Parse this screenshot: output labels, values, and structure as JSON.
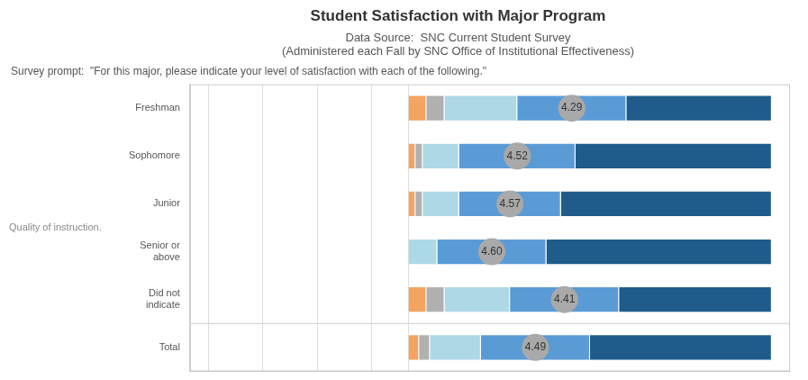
{
  "chart_data": {
    "type": "bar",
    "orientation": "horizontal",
    "stacked": true,
    "title": "Student Satisfaction with Major Program",
    "subtitle": [
      "Data Source:  SNC Current Student Survey",
      "(Administered each Fall by SNC Office of Institutional Effectiveness)"
    ],
    "annotations": [
      "Survey prompt:  \"For this major, please indicate your level of satisfaction with each of the following.\"",
      "Quality of instruction."
    ],
    "categories": [
      "Freshman",
      "Sophomore",
      "Junior",
      "Senior or\nabove",
      "Did not\nindicate",
      "Total"
    ],
    "series": [
      {
        "color": "#F4A460",
        "values": [
          0.05,
          0.02,
          0.02,
          0.0,
          0.05,
          0.03
        ]
      },
      {
        "color": "#B0B0B0",
        "values": [
          0.05,
          0.02,
          0.02,
          0.0,
          0.05,
          0.03
        ]
      },
      {
        "color": "#ADD8E6",
        "values": [
          0.2,
          0.1,
          0.1,
          0.08,
          0.18,
          0.14
        ]
      },
      {
        "color": "#5B9BD5",
        "values": [
          0.3,
          0.32,
          0.28,
          0.3,
          0.3,
          0.3
        ]
      },
      {
        "color": "#1F5C8B",
        "values": [
          0.4,
          0.54,
          0.58,
          0.62,
          0.42,
          0.5
        ]
      }
    ],
    "scores": {
      "values": [
        4.29,
        4.52,
        4.57,
        4.6,
        4.41,
        4.49
      ],
      "value_labels": [
        "4.29",
        "4.52",
        "4.57",
        "4.60",
        "4.41",
        "4.49"
      ],
      "color": "#A9A9A9"
    },
    "xlim": [
      -0.6,
      1.05
    ],
    "xticks": [
      -0.55,
      -0.4,
      -0.25,
      -0.1,
      0
    ],
    "grid": true,
    "tick_labels": "y"
  }
}
